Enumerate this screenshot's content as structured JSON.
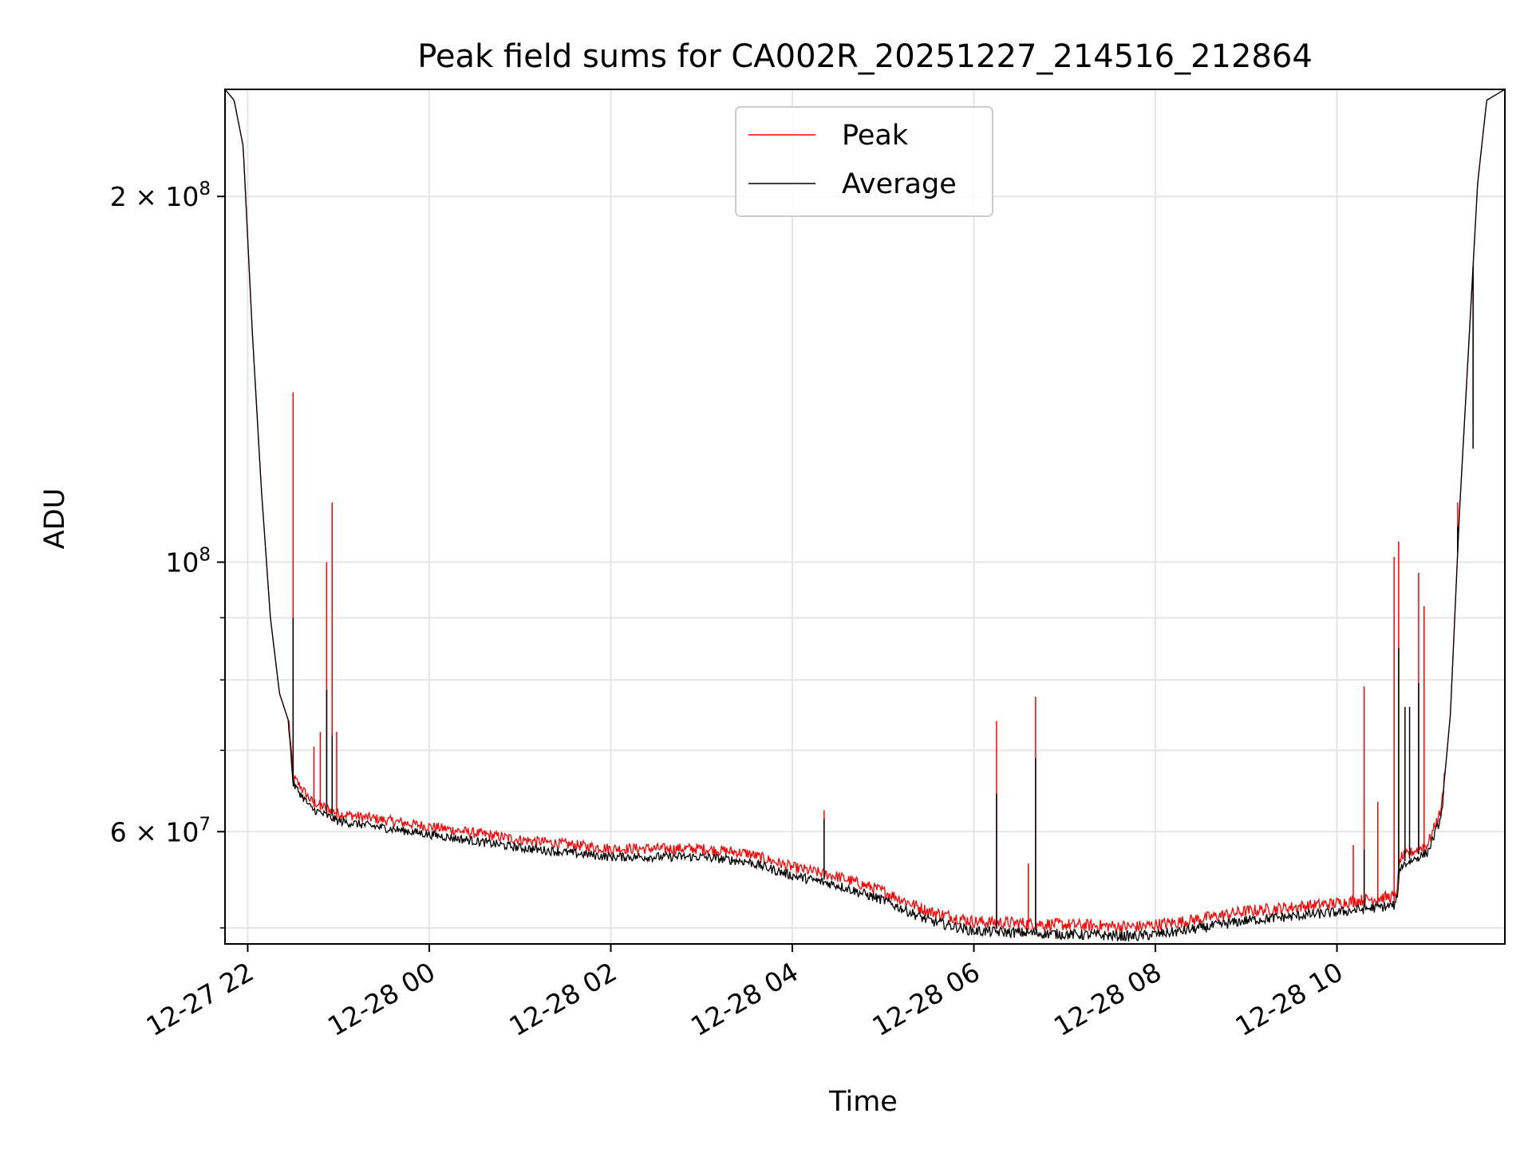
{
  "chart_data": {
    "type": "line",
    "title": "Peak field sums for CA002R_20251227_214516_212864",
    "xlabel": "Time",
    "ylabel": "ADU",
    "yscale": "log",
    "xlim_hours": [
      21.75,
      35.85
    ],
    "ylim": [
      48500000,
      245000000
    ],
    "grid": true,
    "legend": {
      "placement": "upper center",
      "entries": [
        "Peak",
        "Average"
      ]
    },
    "x_ticks": [
      {
        "label": "12-27 22",
        "hour": 22
      },
      {
        "label": "12-28 00",
        "hour": 24
      },
      {
        "label": "12-28 02",
        "hour": 26
      },
      {
        "label": "12-28 04",
        "hour": 28
      },
      {
        "label": "12-28 06",
        "hour": 30
      },
      {
        "label": "12-28 08",
        "hour": 32
      },
      {
        "label": "12-28 10",
        "hour": 34
      }
    ],
    "y_major_ticks": [
      {
        "value": 60000000,
        "mantissa": "6",
        "base": "10",
        "exp": "7"
      },
      {
        "value": 100000000,
        "mantissa": "",
        "base": "10",
        "exp": "8"
      },
      {
        "value": 200000000,
        "mantissa": "2",
        "base": "10",
        "exp": "8"
      }
    ],
    "y_minor_values": [
      50000000,
      70000000,
      80000000,
      90000000
    ],
    "series": [
      {
        "name": "Peak",
        "color": "#ff0000",
        "baseline_offset": 600000,
        "noise": 600000,
        "spikes": [
          {
            "hour": 22.5,
            "value": 138000000
          },
          {
            "hour": 22.73,
            "value": 70500000
          },
          {
            "hour": 22.8,
            "value": 72500000
          },
          {
            "hour": 22.87,
            "value": 100000000
          },
          {
            "hour": 22.93,
            "value": 112000000
          },
          {
            "hour": 22.98,
            "value": 72500000
          },
          {
            "hour": 28.35,
            "value": 62500000
          },
          {
            "hour": 30.25,
            "value": 74000000
          },
          {
            "hour": 30.6,
            "value": 56500000
          },
          {
            "hour": 30.68,
            "value": 77500000
          },
          {
            "hour": 34.18,
            "value": 58500000
          },
          {
            "hour": 34.3,
            "value": 79000000
          },
          {
            "hour": 34.45,
            "value": 63500000
          },
          {
            "hour": 34.63,
            "value": 101000000
          },
          {
            "hour": 34.68,
            "value": 104000000
          },
          {
            "hour": 34.9,
            "value": 98000000
          },
          {
            "hour": 34.96,
            "value": 92000000
          },
          {
            "hour": 35.33,
            "value": 112000000
          },
          {
            "hour": 35.5,
            "value": 130000000
          }
        ]
      },
      {
        "name": "Average",
        "color": "#000000",
        "baseline_offset": -300000,
        "noise": 500000,
        "spikes": [
          {
            "hour": 22.5,
            "value": 90000000
          },
          {
            "hour": 22.87,
            "value": 78500000
          },
          {
            "hour": 22.93,
            "value": 72000000
          },
          {
            "hour": 28.35,
            "value": 61500000
          },
          {
            "hour": 30.25,
            "value": 64500000
          },
          {
            "hour": 30.68,
            "value": 69000000
          },
          {
            "hour": 34.3,
            "value": 58000000
          },
          {
            "hour": 34.68,
            "value": 85000000
          },
          {
            "hour": 34.75,
            "value": 76000000
          },
          {
            "hour": 34.8,
            "value": 76000000
          },
          {
            "hour": 34.9,
            "value": 79500000
          },
          {
            "hour": 35.33,
            "value": 107000000
          },
          {
            "hour": 35.5,
            "value": 124000000
          }
        ]
      }
    ],
    "baseline_profile": [
      {
        "hour": 21.75,
        "value": 245000000
      },
      {
        "hour": 21.85,
        "value": 240000000
      },
      {
        "hour": 21.95,
        "value": 220000000
      },
      {
        "hour": 22.05,
        "value": 155000000
      },
      {
        "hour": 22.15,
        "value": 115000000
      },
      {
        "hour": 22.25,
        "value": 90000000
      },
      {
        "hour": 22.35,
        "value": 78000000
      },
      {
        "hour": 22.45,
        "value": 74000000
      },
      {
        "hour": 22.5,
        "value": 66000000
      },
      {
        "hour": 22.7,
        "value": 63000000
      },
      {
        "hour": 23.0,
        "value": 61500000
      },
      {
        "hour": 24.0,
        "value": 60000000
      },
      {
        "hour": 25.0,
        "value": 58500000
      },
      {
        "hour": 26.0,
        "value": 57500000
      },
      {
        "hour": 27.0,
        "value": 57500000
      },
      {
        "hour": 27.5,
        "value": 57000000
      },
      {
        "hour": 28.0,
        "value": 55500000
      },
      {
        "hour": 28.5,
        "value": 54500000
      },
      {
        "hour": 29.0,
        "value": 53000000
      },
      {
        "hour": 29.5,
        "value": 51000000
      },
      {
        "hour": 30.0,
        "value": 50000000
      },
      {
        "hour": 31.0,
        "value": 49700000
      },
      {
        "hour": 31.8,
        "value": 49500000
      },
      {
        "hour": 32.3,
        "value": 50000000
      },
      {
        "hour": 33.0,
        "value": 51000000
      },
      {
        "hour": 34.0,
        "value": 51800000
      },
      {
        "hour": 34.65,
        "value": 52500000
      },
      {
        "hour": 34.7,
        "value": 56500000
      },
      {
        "hour": 35.0,
        "value": 58000000
      },
      {
        "hour": 35.15,
        "value": 62000000
      },
      {
        "hour": 35.25,
        "value": 75000000
      },
      {
        "hour": 35.35,
        "value": 110000000
      },
      {
        "hour": 35.45,
        "value": 150000000
      },
      {
        "hour": 35.55,
        "value": 205000000
      },
      {
        "hour": 35.65,
        "value": 240000000
      },
      {
        "hour": 35.85,
        "value": 245000000
      }
    ]
  }
}
